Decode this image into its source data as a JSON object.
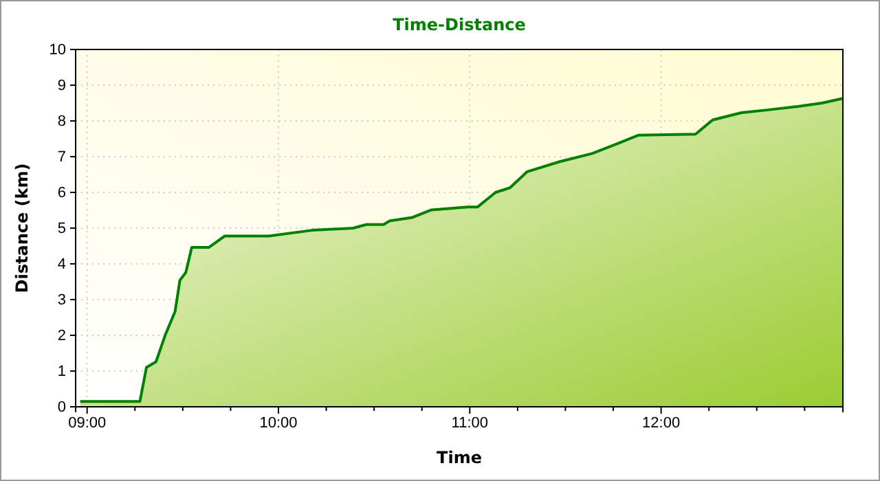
{
  "chart_data": {
    "type": "area",
    "title": "Time-Distance",
    "xlabel": "Time",
    "ylabel": "Distance (km)",
    "x": [
      8.964,
      9.276,
      9.31,
      9.36,
      9.41,
      9.46,
      9.485,
      9.516,
      9.547,
      9.636,
      9.72,
      9.95,
      10.175,
      10.39,
      10.46,
      10.55,
      10.58,
      10.7,
      10.8,
      10.99,
      11.04,
      11.135,
      11.21,
      11.3,
      11.47,
      11.64,
      11.78,
      11.88,
      12.18,
      12.27,
      12.42,
      12.56,
      12.72,
      12.84,
      12.95
    ],
    "series": [
      {
        "color": "#008000",
        "values": [
          0.15,
          0.15,
          1.1,
          1.26,
          2.03,
          2.67,
          3.54,
          3.76,
          4.46,
          4.46,
          4.78,
          4.78,
          4.94,
          5.0,
          5.1,
          5.1,
          5.2,
          5.3,
          5.51,
          5.59,
          5.59,
          6.0,
          6.13,
          6.58,
          6.86,
          7.09,
          7.38,
          7.6,
          7.63,
          8.03,
          8.23,
          8.31,
          8.41,
          8.5,
          8.63
        ]
      }
    ],
    "xlim": [
      8.94,
      12.95
    ],
    "xticks": [
      {
        "value": 9,
        "label": "09:00"
      },
      {
        "value": 9.25,
        "label": null
      },
      {
        "value": 9.5,
        "label": null
      },
      {
        "value": 9.75,
        "label": null
      },
      {
        "value": 10,
        "label": "10:00"
      },
      {
        "value": 10.25,
        "label": null
      },
      {
        "value": 10.5,
        "label": null
      },
      {
        "value": 10.75,
        "label": null
      },
      {
        "value": 11,
        "label": "11:00"
      },
      {
        "value": 11.25,
        "label": null
      },
      {
        "value": 11.5,
        "label": null
      },
      {
        "value": 11.75,
        "label": null
      },
      {
        "value": 12,
        "label": "12:00"
      },
      {
        "value": 12.25,
        "label": null
      },
      {
        "value": 12.5,
        "label": null
      },
      {
        "value": 12.75,
        "label": null
      }
    ],
    "ylim": [
      0,
      10
    ],
    "yticks": [
      0,
      1,
      2,
      3,
      4,
      5,
      6,
      7,
      8,
      9,
      10
    ],
    "grid": true
  }
}
